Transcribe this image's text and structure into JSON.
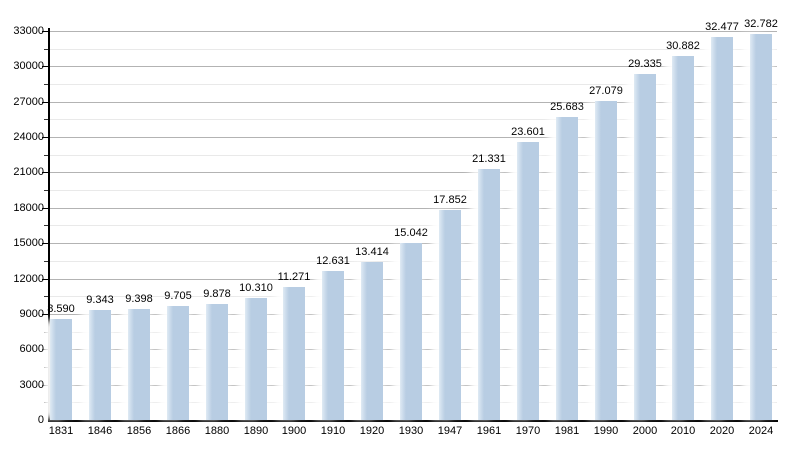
{
  "chart_data": {
    "type": "bar",
    "title": "",
    "xlabel": "",
    "ylabel": "",
    "categories": [
      "1831",
      "1846",
      "1856",
      "1866",
      "1880",
      "1890",
      "1900",
      "1910",
      "1920",
      "1930",
      "1947",
      "1961",
      "1970",
      "1981",
      "1990",
      "2000",
      "2010",
      "2020",
      "2024"
    ],
    "values": [
      8590,
      9343,
      9398,
      9705,
      9878,
      10310,
      11271,
      12631,
      13414,
      15042,
      17852,
      21331,
      23601,
      25683,
      27079,
      29335,
      30882,
      32477,
      32782
    ],
    "value_labels": [
      "8.590",
      "9.343",
      "9.398",
      "9.705",
      "9.878",
      "10.310",
      "11.271",
      "12.631",
      "13.414",
      "15.042",
      "17.852",
      "21.331",
      "23.601",
      "25.683",
      "27.079",
      "29.335",
      "30.882",
      "32.477",
      "32.782"
    ],
    "ylim": [
      0,
      33000
    ],
    "y_major_step": 3000,
    "y_minor_step": 1500,
    "y_tick_labels": [
      "0",
      "3000",
      "6000",
      "9000",
      "12000",
      "15000",
      "18000",
      "21000",
      "24000",
      "27000",
      "30000",
      "33000"
    ],
    "grid": "horizontal, major and minor lines",
    "legend": "none",
    "colors": {
      "bar_fill": "#b8cde3",
      "bar_edge_highlight": "#dfeaf4",
      "axis": "#000000",
      "major_grid": "#b3b3b3",
      "minor_grid": "#e9e9e9",
      "text": "#000000",
      "background": "#ffffff"
    }
  }
}
